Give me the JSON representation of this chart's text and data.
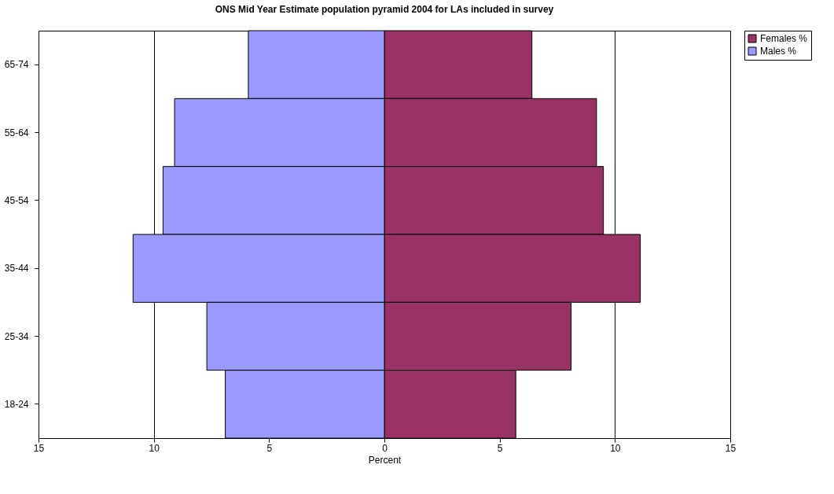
{
  "chart_data": {
    "type": "bar",
    "orientation": "horizontal",
    "stacked": true,
    "title": "ONS Mid Year Estimate population pyramid 2004 for LAs included in survey",
    "xlabel": "Percent",
    "categories": [
      "65-74",
      "55-64",
      "45-54",
      "35-44",
      "25-34",
      "18-24"
    ],
    "series": [
      {
        "name": "Females %",
        "color": "#993366",
        "values": [
          6.4,
          9.2,
          9.5,
          11.1,
          8.1,
          5.7
        ]
      },
      {
        "name": "Males %",
        "color": "#9999ff",
        "values": [
          -5.9,
          -9.1,
          -9.6,
          -10.9,
          -7.7,
          -6.9
        ]
      }
    ],
    "xlim": [
      -15,
      15
    ],
    "xticks": [
      {
        "value": -15,
        "label": "15"
      },
      {
        "value": -10,
        "label": "10"
      },
      {
        "value": -5,
        "label": "5"
      },
      0,
      5,
      10,
      15
    ],
    "grid": "x",
    "legend": "right"
  }
}
